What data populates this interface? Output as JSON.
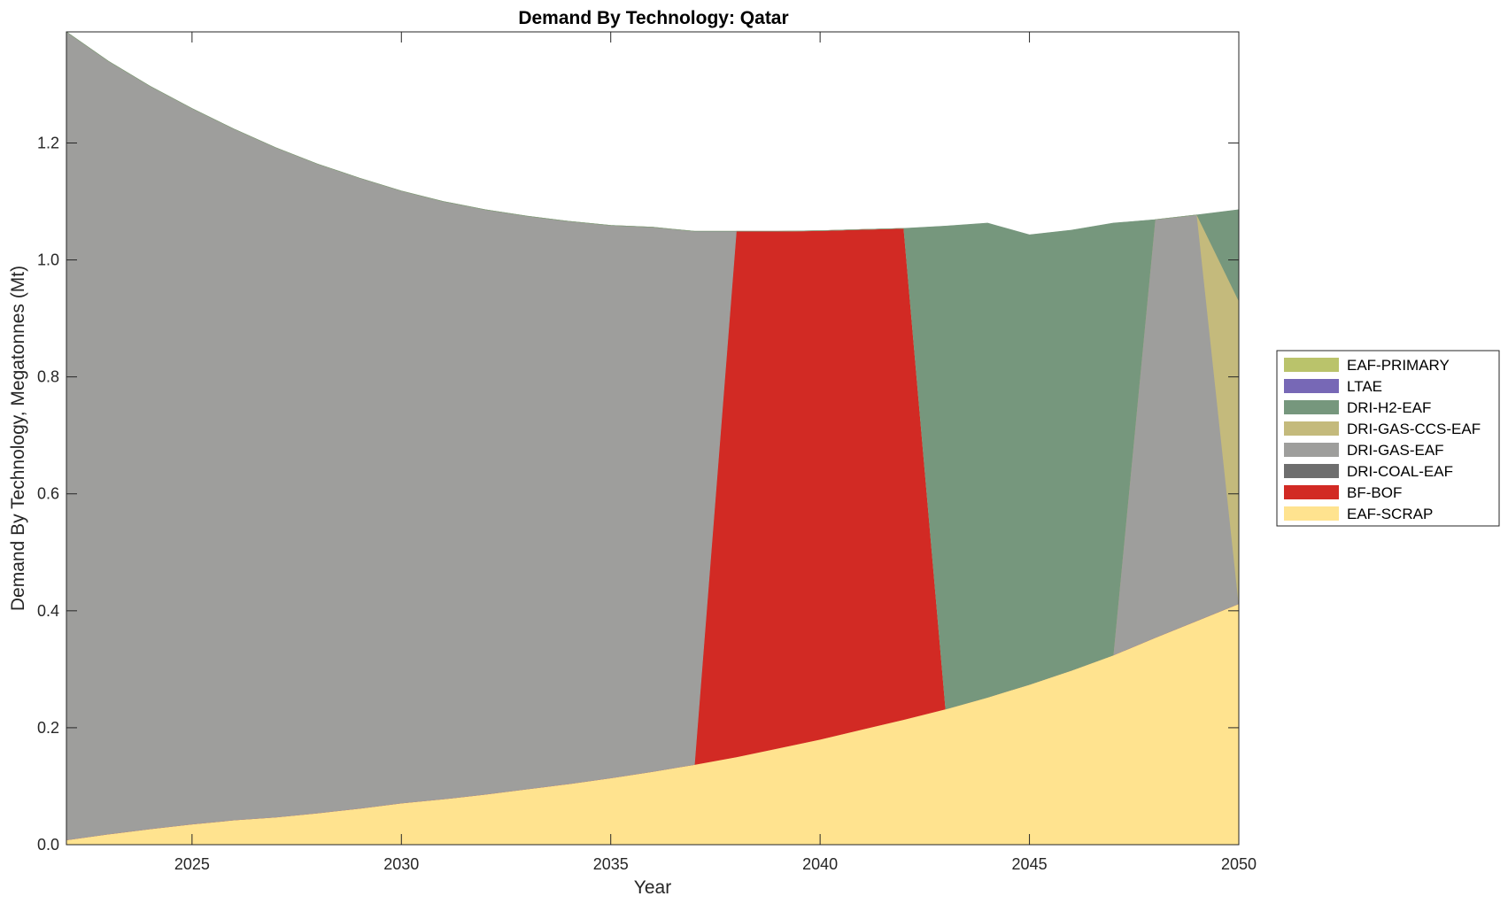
{
  "chart_data": {
    "type": "area",
    "title": "Demand By Technology: Qatar",
    "xlabel": "Year",
    "ylabel": "Demand By Technology, Megatonnes (Mt)",
    "xlim": [
      2022,
      2050
    ],
    "ylim": [
      0,
      1.39
    ],
    "xticks": [
      2025,
      2030,
      2035,
      2040,
      2045,
      2050
    ],
    "yticks": [
      0.0,
      0.2,
      0.4,
      0.6,
      0.8,
      1.0,
      1.2
    ],
    "ytick_labels": [
      "0.0",
      "0.2",
      "0.4",
      "0.6",
      "0.8",
      "1.0",
      "1.2"
    ],
    "grid": false,
    "legend_position": "right",
    "x": [
      2022,
      2023,
      2024,
      2025,
      2026,
      2027,
      2028,
      2029,
      2030,
      2031,
      2032,
      2033,
      2034,
      2035,
      2036,
      2037,
      2038,
      2039,
      2040,
      2041,
      2042,
      2043,
      2044,
      2045,
      2046,
      2047,
      2048,
      2049,
      2050
    ],
    "series": [
      {
        "name": "EAF-SCRAP",
        "color": "#FFE38F",
        "values": [
          0.008,
          0.018,
          0.027,
          0.035,
          0.042,
          0.047,
          0.054,
          0.062,
          0.071,
          0.078,
          0.086,
          0.095,
          0.104,
          0.114,
          0.125,
          0.137,
          0.15,
          0.165,
          0.18,
          0.197,
          0.214,
          0.232,
          0.252,
          0.274,
          0.298,
          0.324,
          0.354,
          0.383,
          0.412
        ]
      },
      {
        "name": "BF-BOF",
        "color": "#D22A24",
        "values": [
          0,
          0,
          0,
          0,
          0,
          0,
          0,
          0,
          0,
          0,
          0,
          0,
          0,
          0,
          0,
          0,
          0.899,
          0.884,
          0.87,
          0.855,
          0.84,
          0,
          0,
          0,
          0,
          0,
          0,
          0,
          0
        ]
      },
      {
        "name": "DRI-COAL-EAF",
        "color": "#6E6E6E",
        "values": [
          0,
          0,
          0,
          0,
          0,
          0,
          0,
          0,
          0,
          0,
          0,
          0,
          0,
          0,
          0,
          0,
          0,
          0,
          0,
          0,
          0,
          0,
          0,
          0,
          0,
          0,
          0,
          0,
          0
        ]
      },
      {
        "name": "DRI-GAS-EAF",
        "color": "#9E9E9C",
        "values": [
          1.382,
          1.322,
          1.27,
          1.224,
          1.182,
          1.145,
          1.11,
          1.078,
          1.047,
          1.022,
          1.0,
          0.98,
          0.962,
          0.945,
          0.931,
          0.912,
          0,
          0,
          0,
          0,
          0,
          0,
          0,
          0,
          0,
          0,
          0.715,
          0.694,
          0
        ]
      },
      {
        "name": "DRI-GAS-CCS-EAF",
        "color": "#C4BA7C",
        "values": [
          0,
          0,
          0,
          0,
          0,
          0,
          0,
          0,
          0,
          0,
          0,
          0,
          0,
          0,
          0,
          0,
          0,
          0,
          0,
          0,
          0,
          0,
          0,
          0,
          0,
          0,
          0,
          0,
          0.518
        ]
      },
      {
        "name": "DRI-H2-EAF",
        "color": "#76977D",
        "values": [
          0,
          0,
          0,
          0,
          0,
          0,
          0,
          0,
          0,
          0,
          0,
          0,
          0,
          0,
          0,
          0,
          0,
          0,
          0,
          0,
          0,
          0.826,
          0.811,
          0.769,
          0.753,
          0.739,
          0,
          0,
          0.156
        ]
      },
      {
        "name": "LTAE",
        "color": "#7768B6",
        "values": [
          0,
          0,
          0,
          0,
          0,
          0,
          0,
          0,
          0,
          0,
          0,
          0,
          0,
          0,
          0,
          0,
          0,
          0,
          0,
          0,
          0,
          0,
          0,
          0,
          0,
          0,
          0,
          0,
          0
        ]
      },
      {
        "name": "EAF-PRIMARY",
        "color": "#BAC36B",
        "values": [
          0,
          0,
          0,
          0,
          0,
          0,
          0,
          0,
          0,
          0,
          0,
          0,
          0,
          0,
          0,
          0,
          0,
          0,
          0,
          0,
          0,
          0,
          0,
          0,
          0,
          0,
          0,
          0,
          0
        ]
      }
    ],
    "legend_order": [
      "EAF-PRIMARY",
      "LTAE",
      "DRI-H2-EAF",
      "DRI-GAS-CCS-EAF",
      "DRI-GAS-EAF",
      "DRI-COAL-EAF",
      "BF-BOF",
      "EAF-SCRAP"
    ]
  }
}
